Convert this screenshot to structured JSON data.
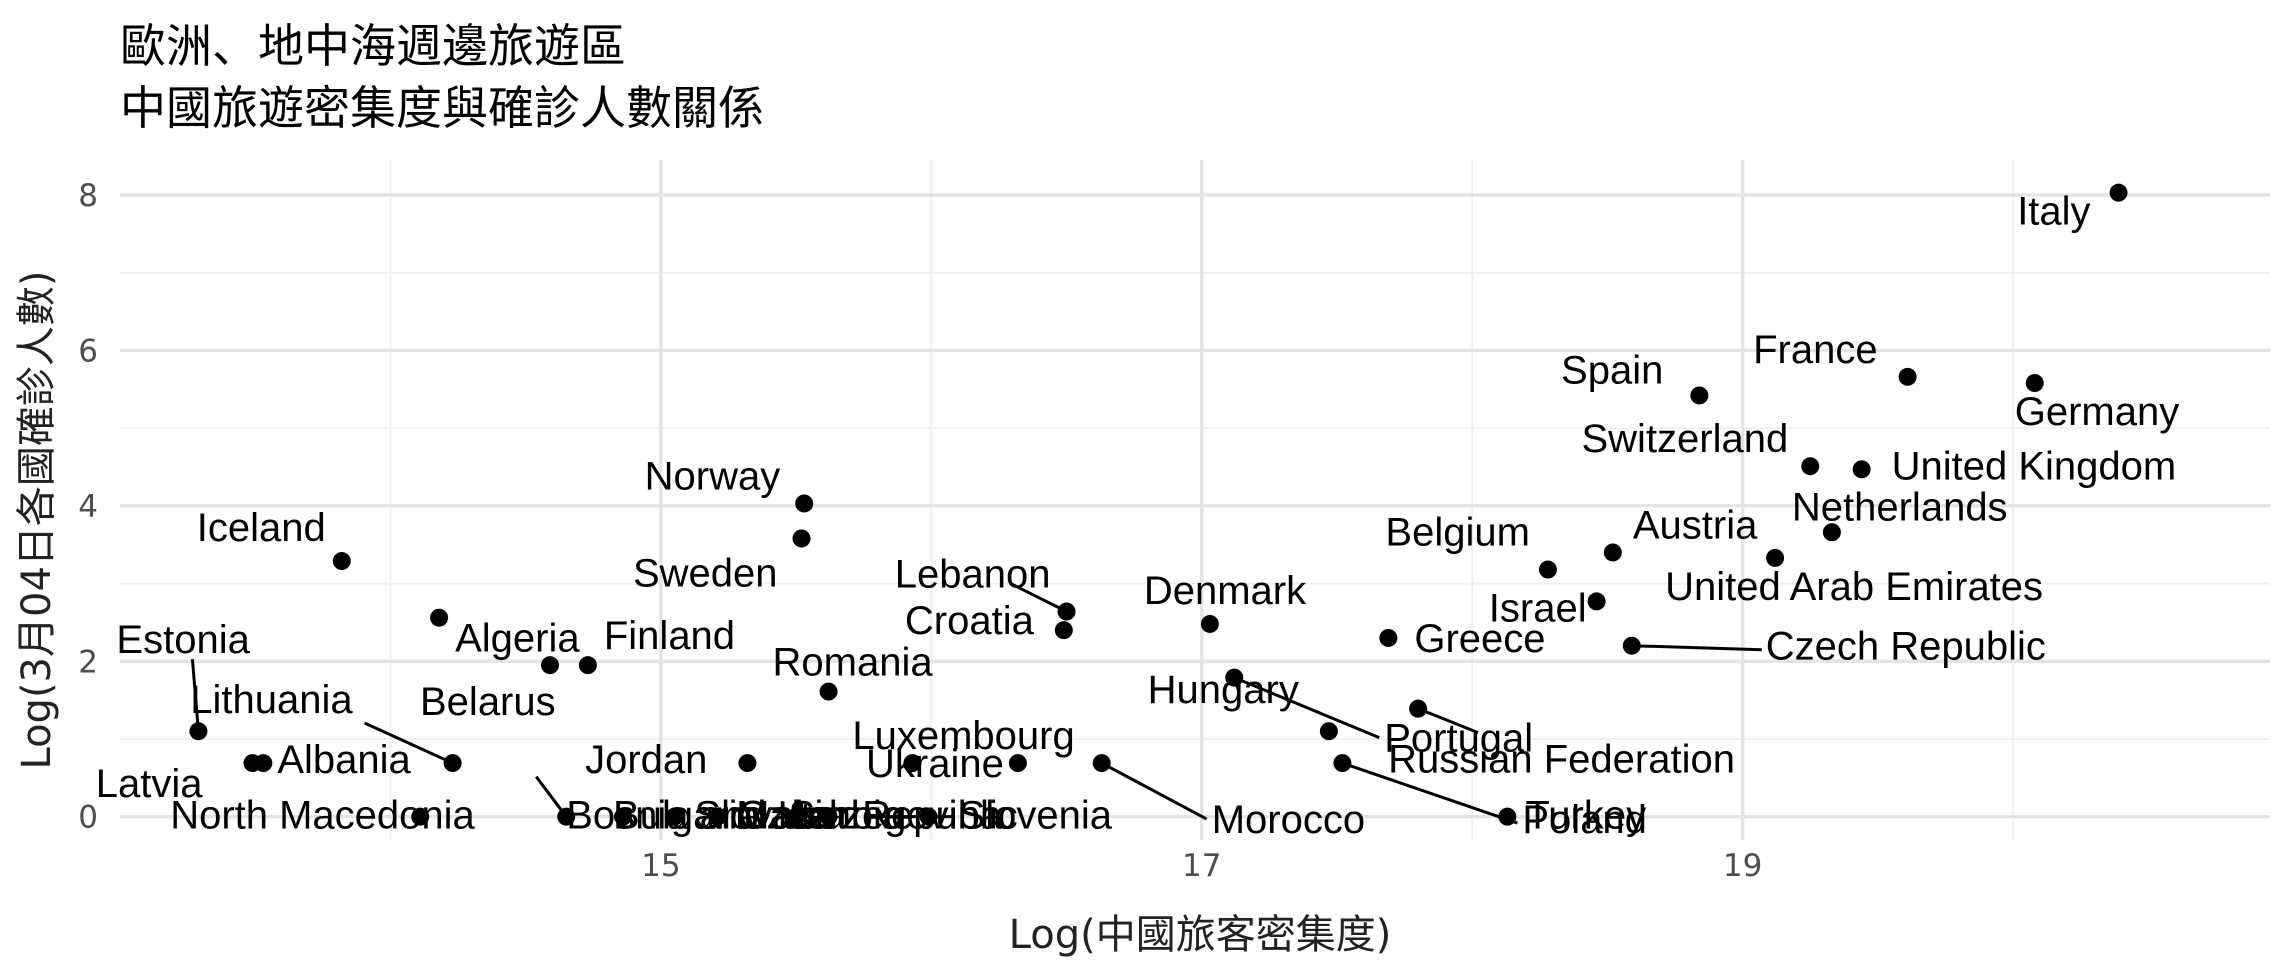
{
  "chart_data": {
    "type": "scatter",
    "title": [
      "歐洲、地中海週邊旅遊區",
      "中國旅遊密集度與確診人數關係"
    ],
    "xlabel": "Log(中國旅客密集度)",
    "ylabel": "Log(3月04日各國確診人數)",
    "xlim": [
      13.0,
      20.95
    ],
    "ylim": [
      -0.3,
      8.45
    ],
    "xticks": [
      15,
      17,
      19
    ],
    "yticks": [
      0,
      2,
      4,
      6,
      8
    ],
    "grid": true,
    "points": [
      {
        "name": "Italy",
        "x": 20.39,
        "y": 8.03
      },
      {
        "name": "France",
        "x": 19.61,
        "y": 5.66
      },
      {
        "name": "Germany",
        "x": 20.08,
        "y": 5.58
      },
      {
        "name": "Spain",
        "x": 18.84,
        "y": 5.42
      },
      {
        "name": "Switzerland",
        "x": 19.25,
        "y": 4.51
      },
      {
        "name": "United Kingdom",
        "x": 19.44,
        "y": 4.47
      },
      {
        "name": "Netherlands",
        "x": 19.33,
        "y": 3.66
      },
      {
        "name": "Austria",
        "x": 18.52,
        "y": 3.4
      },
      {
        "name": "United Arab Emirates",
        "x": 19.12,
        "y": 3.33
      },
      {
        "name": "Belgium",
        "x": 18.28,
        "y": 3.18
      },
      {
        "name": "Israel",
        "x": 18.46,
        "y": 2.77
      },
      {
        "name": "Czech Republic",
        "x": 18.59,
        "y": 2.2
      },
      {
        "name": "Portugal",
        "x": 17.12,
        "y": 1.79
      },
      {
        "name": "Greece",
        "x": 17.69,
        "y": 2.3
      },
      {
        "name": "Denmark",
        "x": 17.03,
        "y": 2.48
      },
      {
        "name": "Lebanon",
        "x": 16.5,
        "y": 2.64
      },
      {
        "name": "Croatia",
        "x": 16.49,
        "y": 2.4
      },
      {
        "name": "Russian Federation",
        "x": 17.8,
        "y": 1.39
      },
      {
        "name": "Hungary",
        "x": 17.47,
        "y": 1.1
      },
      {
        "name": "Poland",
        "x": 17.52,
        "y": 0.69
      },
      {
        "name": "Morocco",
        "x": 16.63,
        "y": 0.69
      },
      {
        "name": "Ukraine",
        "x": 16.32,
        "y": 0.69
      },
      {
        "name": "Turkey",
        "x": 18.13,
        "y": 0.0
      },
      {
        "name": "Slovenia",
        "x": 15.99,
        "y": 0.0
      },
      {
        "name": "Norway",
        "x": 15.53,
        "y": 4.03
      },
      {
        "name": "Sweden",
        "x": 15.52,
        "y": 3.58
      },
      {
        "name": "Finland",
        "x": 14.73,
        "y": 1.95
      },
      {
        "name": "Romania",
        "x": 15.62,
        "y": 1.61
      },
      {
        "name": "Luxembourg",
        "x": 15.93,
        "y": 0.69
      },
      {
        "name": "Jordan",
        "x": 15.32,
        "y": 0.69
      },
      {
        "name": "Iceland",
        "x": 13.82,
        "y": 3.29
      },
      {
        "name": "Algeria",
        "x": 14.18,
        "y": 2.56
      },
      {
        "name": "Belarus",
        "x": 14.59,
        "y": 1.95
      },
      {
        "name": "Estonia",
        "x": 13.29,
        "y": 1.1
      },
      {
        "name": "Lithuania",
        "x": 14.23,
        "y": 0.69
      },
      {
        "name": "Albania",
        "x": 13.53,
        "y": 0.69
      },
      {
        "name": "Latvia",
        "x": 13.49,
        "y": 0.69
      },
      {
        "name": "North Macedonia",
        "x": 14.11,
        "y": 0.0
      },
      {
        "name": "Bosnia and Herzegovina",
        "x": 14.65,
        "y": 0.0
      },
      {
        "name": "Bulgaria",
        "x": 14.86,
        "y": 0.0
      },
      {
        "name": "Slovakia",
        "x": 15.05,
        "y": 0.0
      },
      {
        "name": "Czech Republic_dup",
        "x": 15.21,
        "y": 0.0
      },
      {
        "name": "Serbia",
        "x": 15.62,
        "y": 0.0
      },
      {
        "name": "Malta",
        "x": 15.5,
        "y": 0.0
      }
    ]
  }
}
